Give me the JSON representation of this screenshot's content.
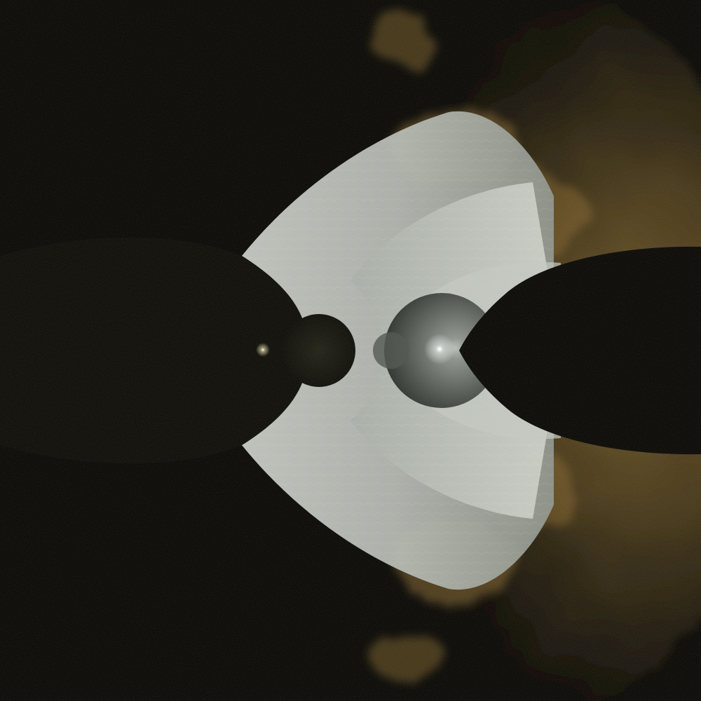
{
  "colors": {
    "background": "#000000",
    "haze_gold": "#8a6a26",
    "haze_orange": "#b07a30",
    "haze_dark": "#3a2e12",
    "shell_light": "#d8ddd8",
    "shell_mid": "#a9b0ac",
    "shell_dark": "#5f6663",
    "sphere_light": "#9aa09e",
    "sphere_dark": "#3d4341",
    "void": "#000000",
    "highlight": "#ffffff"
  },
  "icons": [
    "fractal-render"
  ]
}
